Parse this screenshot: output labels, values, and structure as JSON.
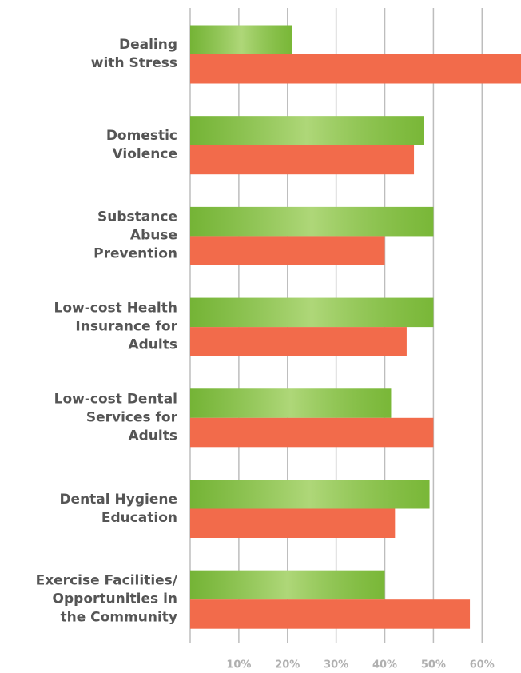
{
  "chart_data": {
    "type": "bar",
    "orientation": "horizontal",
    "categories": [
      "Dealing\nwith Stress",
      "Domestic\nViolence",
      "Substance\nAbuse\nPrevention",
      "Low-cost Health\nInsurance for\nAdults",
      "Low-cost Dental\nServices for\nAdults",
      "Dental Hygiene\nEducation",
      "Exercise Facilities/\nOpportunities in\nthe Community"
    ],
    "series": [
      {
        "color": "#8cc63f",
        "values": [
          21,
          48,
          50,
          50,
          41.3,
          49.2,
          40
        ]
      },
      {
        "color": "#f26b4b",
        "values": [
          68,
          46,
          40,
          44.5,
          50,
          42.1,
          57.5
        ]
      }
    ],
    "xlim": [
      0,
      68
    ],
    "xticks": [
      {
        "value": 10,
        "label": "10%"
      },
      {
        "value": 20,
        "label": "20%"
      },
      {
        "value": 30,
        "label": "30%"
      },
      {
        "value": 40,
        "label": "40%"
      },
      {
        "value": 50,
        "label": "50%"
      },
      {
        "value": 60,
        "label": "60%"
      }
    ],
    "grid": true
  }
}
